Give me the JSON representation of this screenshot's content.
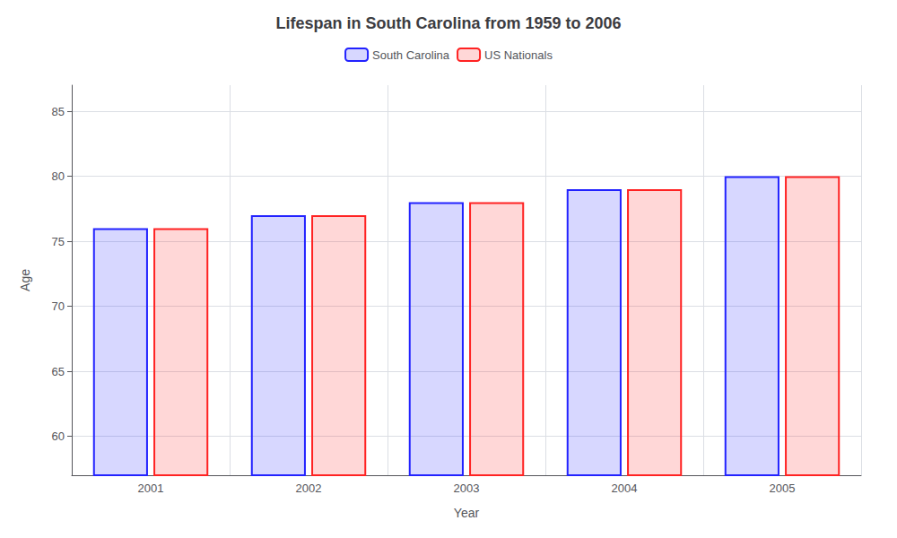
{
  "chart_data": {
    "type": "bar",
    "title": "Lifespan in South Carolina from 1959 to 2006",
    "xlabel": "Year",
    "ylabel": "Age",
    "categories": [
      "2001",
      "2002",
      "2003",
      "2004",
      "2005"
    ],
    "series": [
      {
        "name": "South Carolina",
        "color": "#2222ff",
        "values": [
          76,
          77,
          78,
          79,
          80
        ]
      },
      {
        "name": "US Nationals",
        "color": "#ff2222",
        "values": [
          76,
          77,
          78,
          79,
          80
        ]
      }
    ],
    "ylim": [
      57,
      87
    ],
    "yticks": [
      60,
      65,
      70,
      75,
      80,
      85
    ],
    "grid": true,
    "legend": "top"
  }
}
